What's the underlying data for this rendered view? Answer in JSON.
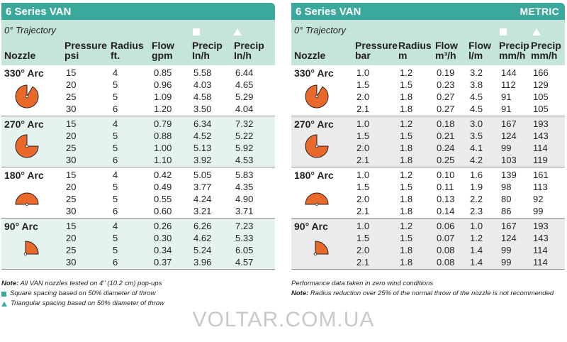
{
  "left": {
    "title": "6 Series VAN",
    "trajectory": "0° Trajectory",
    "headers": {
      "nozzle": "Nozzle",
      "pressure": [
        "Pressure",
        "psi"
      ],
      "radius": [
        "Radius",
        "ft."
      ],
      "flow": [
        "Flow",
        "gpm"
      ],
      "precip_sq": [
        "Precip",
        "In/h"
      ],
      "precip_tri": [
        "Precip",
        "In/h"
      ]
    },
    "groups": [
      {
        "arc": "330° Arc",
        "rows": [
          [
            "15",
            "4",
            "0.85",
            "5.58",
            "6.44"
          ],
          [
            "20",
            "5",
            "0.96",
            "4.03",
            "4.65"
          ],
          [
            "25",
            "5",
            "1.09",
            "4.58",
            "5.29"
          ],
          [
            "30",
            "6",
            "1.20",
            "3.50",
            "4.04"
          ]
        ]
      },
      {
        "arc": "270° Arc",
        "rows": [
          [
            "15",
            "4",
            "0.79",
            "6.34",
            "7.32"
          ],
          [
            "20",
            "5",
            "0.88",
            "4.52",
            "5.22"
          ],
          [
            "25",
            "5",
            "1.00",
            "5.13",
            "5.92"
          ],
          [
            "30",
            "6",
            "1.10",
            "3.92",
            "4.53"
          ]
        ]
      },
      {
        "arc": "180° Arc",
        "rows": [
          [
            "15",
            "4",
            "0.42",
            "5.05",
            "5.83"
          ],
          [
            "20",
            "5",
            "0.49",
            "3.77",
            "4.35"
          ],
          [
            "25",
            "5",
            "0.55",
            "4.24",
            "4.90"
          ],
          [
            "30",
            "6",
            "0.60",
            "3.21",
            "3.71"
          ]
        ]
      },
      {
        "arc": "90° Arc",
        "rows": [
          [
            "15",
            "4",
            "0.26",
            "6.26",
            "7.23"
          ],
          [
            "20",
            "5",
            "0.30",
            "4.62",
            "5.33"
          ],
          [
            "25",
            "5",
            "0.34",
            "5.24",
            "6.05"
          ],
          [
            "30",
            "6",
            "0.37",
            "3.96",
            "4.57"
          ]
        ]
      }
    ],
    "notes": {
      "prefix": "Note:",
      "line1": " All VAN nozzles tested on 4\" (10.2 cm) pop-ups",
      "line2": "Square spacing based on 50% diameter of throw",
      "line3": "Triangular spacing based on 50% diameter of throw"
    }
  },
  "right": {
    "title": "6 Series VAN",
    "badge": "METRIC",
    "trajectory": "0° Trajectory",
    "headers": {
      "nozzle": "Nozzle",
      "pressure": [
        "Pressure",
        "bar"
      ],
      "radius": [
        "Radius",
        "m"
      ],
      "flow_m3": [
        "Flow",
        "m³/h"
      ],
      "flow_lm": [
        "Flow",
        "l/m"
      ],
      "precip_sq": [
        "Precip",
        "mm/h"
      ],
      "precip_tri": [
        "Precip",
        "mm/h"
      ]
    },
    "groups": [
      {
        "arc": "330° Arc",
        "rows": [
          [
            "1.0",
            "1.2",
            "0.19",
            "3.2",
            "144",
            "166"
          ],
          [
            "1.5",
            "1.5",
            "0.23",
            "3.8",
            "112",
            "129"
          ],
          [
            "2.0",
            "1.8",
            "0.27",
            "4.5",
            "91",
            "105"
          ],
          [
            "2.1",
            "1.8",
            "0.27",
            "4.5",
            "91",
            "105"
          ]
        ]
      },
      {
        "arc": "270° Arc",
        "rows": [
          [
            "1.0",
            "1.2",
            "0.18",
            "3.0",
            "167",
            "193"
          ],
          [
            "1.5",
            "1.5",
            "0.21",
            "3.5",
            "124",
            "143"
          ],
          [
            "2.0",
            "1.8",
            "0.24",
            "4.1",
            "99",
            "114"
          ],
          [
            "2.1",
            "1.8",
            "0.25",
            "4.2",
            "103",
            "119"
          ]
        ]
      },
      {
        "arc": "180° Arc",
        "rows": [
          [
            "1.0",
            "1.2",
            "0.10",
            "1.6",
            "139",
            "161"
          ],
          [
            "1.5",
            "1.5",
            "0.11",
            "1.9",
            "98",
            "113"
          ],
          [
            "2.0",
            "1.8",
            "0.13",
            "2.2",
            "80",
            "92"
          ],
          [
            "2.1",
            "1.8",
            "0.14",
            "2.3",
            "86",
            "99"
          ]
        ]
      },
      {
        "arc": "90° Arc",
        "rows": [
          [
            "1.0",
            "1.2",
            "0.06",
            "1.0",
            "167",
            "193"
          ],
          [
            "1.5",
            "1.5",
            "0.07",
            "1.2",
            "124",
            "143"
          ],
          [
            "2.0",
            "1.8",
            "0.08",
            "1.4",
            "99",
            "114"
          ],
          [
            "2.1",
            "1.8",
            "0.08",
            "1.4",
            "99",
            "114"
          ]
        ]
      }
    ],
    "notes": {
      "line1": "Performance data taken in zero wind conditions",
      "prefix": "Note:",
      "line2": " Radius reduction over 25% of the normal throw of the nozzle is not recommended"
    }
  },
  "watermark": "VOLTAR.COM.UA",
  "colors": {
    "header": "#3aa89a",
    "subheader": "#c4e4dc",
    "alt_left": "#e4f3ef",
    "alt_right": "#ebebeb",
    "arc_fill": "#e8692a"
  },
  "arc_icons": [
    "arc-330-icon",
    "arc-270-icon",
    "arc-180-icon",
    "arc-90-icon"
  ]
}
